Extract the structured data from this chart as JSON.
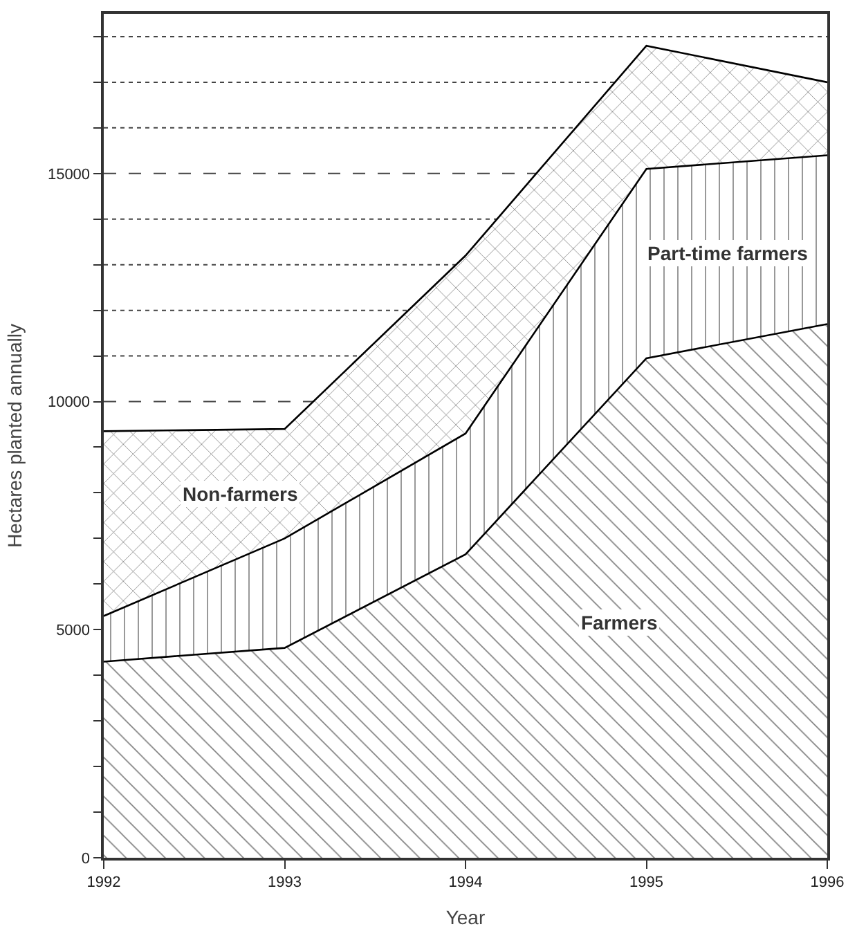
{
  "chart_data": {
    "type": "area",
    "stacked": true,
    "xlabel": "Year",
    "ylabel": "Hectares planted annually",
    "x": [
      1992,
      1993,
      1994,
      1995,
      1996
    ],
    "series": [
      {
        "name": "Farmers",
        "color": "#000000",
        "values": [
          4300,
          4600,
          6650,
          10950,
          11700
        ]
      },
      {
        "name": "Part-time farmers",
        "color": "#000000",
        "values": [
          1000,
          2400,
          2650,
          4150,
          3700
        ]
      },
      {
        "name": "Non-farmers",
        "color": "#000000",
        "values": [
          4050,
          2400,
          3900,
          2700,
          1600
        ]
      }
    ],
    "xlim": [
      1992,
      1996
    ],
    "xticks": [
      1992,
      1993,
      1994,
      1995,
      1996
    ],
    "ylim": [
      0,
      18500
    ],
    "yticks": [
      0,
      {
        "value": 1000,
        "label": null
      },
      {
        "value": 2000,
        "label": null
      },
      {
        "value": 3000,
        "label": null
      },
      {
        "value": 4000,
        "label": null
      },
      5000,
      {
        "value": 6000,
        "label": null
      },
      {
        "value": 7000,
        "label": null
      },
      {
        "value": 8000,
        "label": null
      },
      {
        "value": 9000,
        "label": null
      },
      10000,
      {
        "value": 11000,
        "label": null
      },
      {
        "value": 12000,
        "label": null
      },
      {
        "value": 13000,
        "label": null
      },
      {
        "value": 14000,
        "label": null
      },
      15000,
      {
        "value": 16000,
        "label": null
      },
      {
        "value": 17000,
        "label": null
      },
      {
        "value": 18000,
        "label": null
      }
    ],
    "ref_lines": [
      {
        "axis": "y",
        "value": 10000,
        "line_style": "dashed"
      },
      {
        "axis": "y",
        "value": 11000,
        "line_style": "dotted"
      },
      {
        "axis": "y",
        "value": 12000,
        "line_style": "dotted"
      },
      {
        "axis": "y",
        "value": 13000,
        "line_style": "dotted"
      },
      {
        "axis": "y",
        "value": 14000,
        "line_style": "dotted"
      },
      {
        "axis": "y",
        "value": 15000,
        "line_style": "dashed"
      },
      {
        "axis": "y",
        "value": 16000,
        "line_style": "dotted"
      },
      {
        "axis": "y",
        "value": 17000,
        "line_style": "dotted"
      },
      {
        "axis": "y",
        "value": 18000,
        "line_style": "dotted"
      }
    ],
    "grid": false,
    "legend": false,
    "line_style": "solid"
  }
}
